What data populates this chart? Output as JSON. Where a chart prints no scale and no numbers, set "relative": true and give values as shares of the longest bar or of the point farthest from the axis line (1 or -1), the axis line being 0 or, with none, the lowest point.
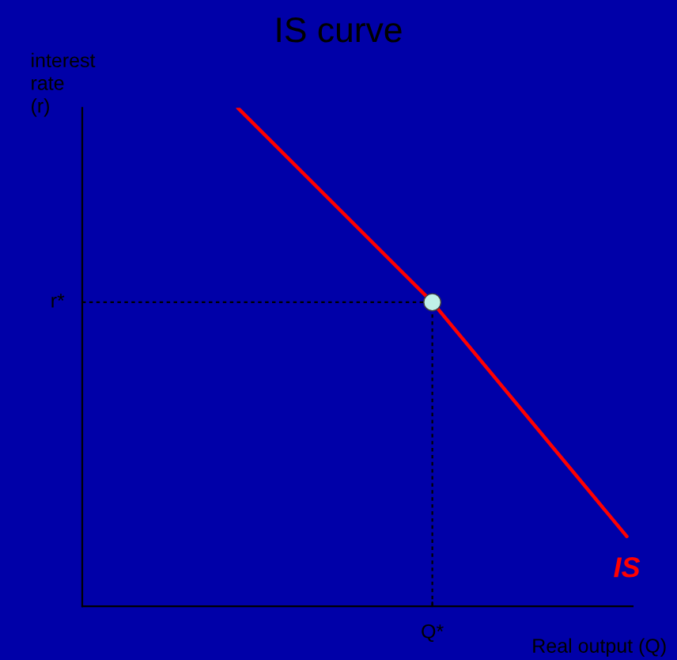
{
  "chart_data": {
    "type": "line",
    "title": "IS curve",
    "xlabel": "Real output (Q)",
    "ylabel": "interest\nrate\n(r)",
    "relative": true,
    "categories": [
      null,
      null,
      null
    ],
    "series": [
      {
        "name": "IS",
        "color": "#ff0000",
        "values": [
          1.0,
          0.61,
          0.14
        ]
      }
    ],
    "annotations": [
      "r*",
      "Q*"
    ]
  }
}
